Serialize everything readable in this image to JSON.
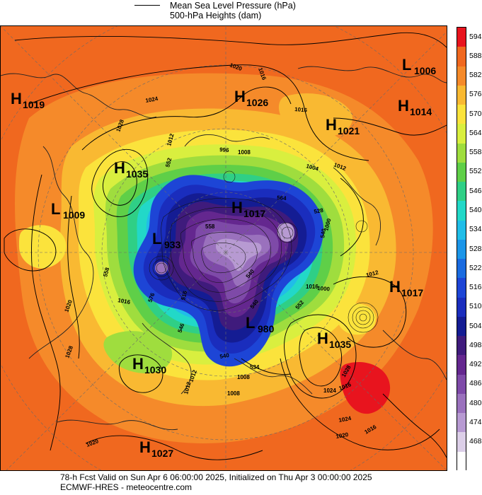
{
  "legend": {
    "mslp_label": "Mean Sea Level Pressure (hPa)",
    "heights_label": "500-hPa Heights (dam)"
  },
  "colorbar": [
    {
      "value": "594",
      "color": "#e8141e"
    },
    {
      "value": "588",
      "color": "#f0681f"
    },
    {
      "value": "582",
      "color": "#f58a2a"
    },
    {
      "value": "576",
      "color": "#f9b932"
    },
    {
      "value": "570",
      "color": "#fbe33c"
    },
    {
      "value": "564",
      "color": "#d9ef3f"
    },
    {
      "value": "558",
      "color": "#9fdd3e"
    },
    {
      "value": "552",
      "color": "#5fcf48"
    },
    {
      "value": "546",
      "color": "#2fcf86"
    },
    {
      "value": "540",
      "color": "#22d8c8"
    },
    {
      "value": "534",
      "color": "#20bde8"
    },
    {
      "value": "528",
      "color": "#1b95e8"
    },
    {
      "value": "522",
      "color": "#1a6be0"
    },
    {
      "value": "516",
      "color": "#1d45d6"
    },
    {
      "value": "510",
      "color": "#1a2dbd"
    },
    {
      "value": "504",
      "color": "#141c93"
    },
    {
      "value": "498",
      "color": "#3f1b7c"
    },
    {
      "value": "492",
      "color": "#64278f"
    },
    {
      "value": "486",
      "color": "#7e4aa8"
    },
    {
      "value": "480",
      "color": "#9a71bd"
    },
    {
      "value": "474",
      "color": "#b79ad2"
    },
    {
      "value": "468",
      "color": "#dccfe8"
    },
    {
      "value": "",
      "color": "#ffffff"
    }
  ],
  "pressure_centers": [
    {
      "type": "L",
      "value": "1006"
    },
    {
      "type": "H",
      "value": "1019"
    },
    {
      "type": "H",
      "value": "1026"
    },
    {
      "type": "H",
      "value": "1014"
    },
    {
      "type": "H",
      "value": "1021"
    },
    {
      "type": "H",
      "value": "1035"
    },
    {
      "type": "L",
      "value": "1009"
    },
    {
      "type": "H",
      "value": "1017"
    },
    {
      "type": "L",
      "value": "933"
    },
    {
      "type": "H",
      "value": "1017"
    },
    {
      "type": "L",
      "value": "980"
    },
    {
      "type": "H",
      "value": "1035"
    },
    {
      "type": "H",
      "value": "1030"
    },
    {
      "type": "H",
      "value": "1027"
    }
  ],
  "isobar_labels": [
    "1020",
    "1016",
    "1024",
    "1016",
    "1028",
    "1012",
    "996",
    "1008",
    "1004",
    "1012",
    "1000",
    "1016",
    "1012",
    "1000",
    "1028",
    "1020",
    "1024",
    "1016",
    "1008",
    "1008",
    "1012",
    "1028",
    "1016",
    "1024",
    "1020",
    "1016",
    "1020",
    "1012"
  ],
  "height_labels": [
    "558",
    "576",
    "546",
    "540",
    "534",
    "558",
    "552",
    "540",
    "540",
    "528",
    "516",
    "552",
    "564",
    "540"
  ],
  "caption": {
    "line1": "78-h Fcst Valid on Sun Apr  6 06:00:00 2025, Initialized on Thu Apr  3 00:00:00 2025",
    "line2": "ECMWF-HRES  - meteocentre.com"
  }
}
